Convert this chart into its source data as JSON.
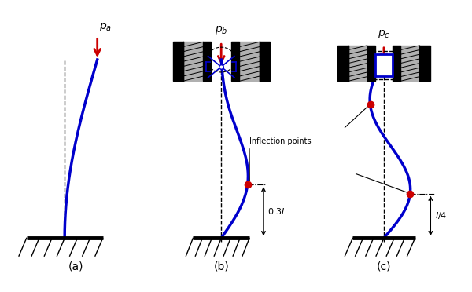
{
  "bg_color": "#ffffff",
  "blue": "#0000cc",
  "red": "#cc0000",
  "black": "#000000",
  "hatch_gray": "#b0b0b0",
  "lw_col": 2.5,
  "lw_wall": 2.0,
  "lw_base": 3.5,
  "arrow_lw": 2.0,
  "infl_ms": 6,
  "panel_labels": [
    "(a)",
    "(b)",
    "(c)"
  ],
  "p_labels": [
    "$p_a$",
    "$p_b$",
    "$p_c$"
  ],
  "dim_label_b": "$0.3L$",
  "dim_label_c": "$l/4$",
  "infl_label": "Inflection points"
}
